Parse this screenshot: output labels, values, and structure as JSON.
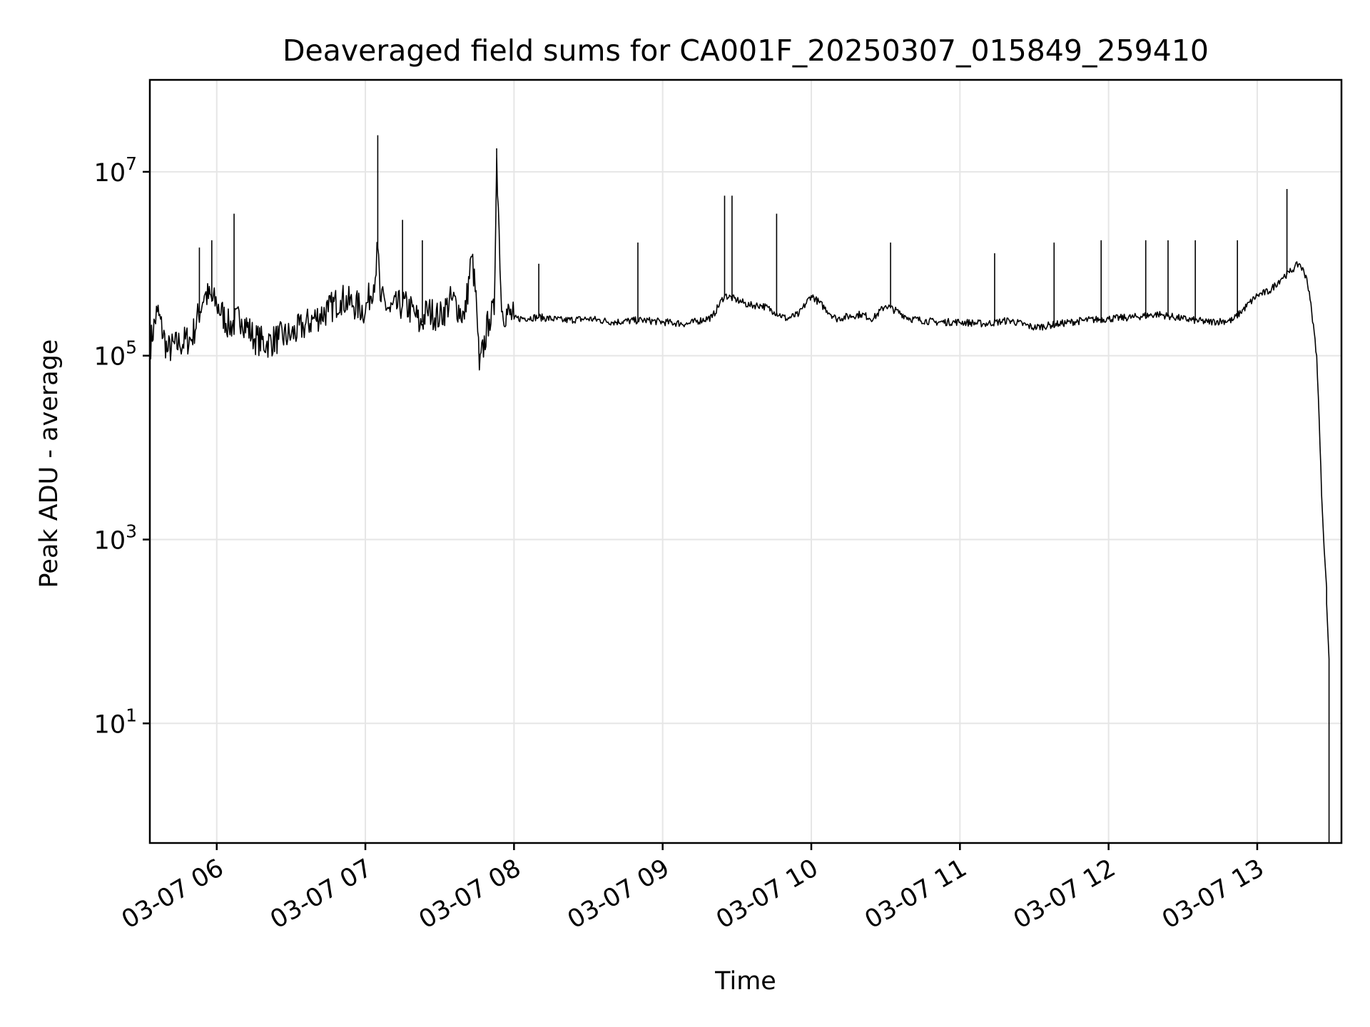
{
  "chart_data": {
    "type": "line",
    "title": "Deaveraged field sums for CA001F_20250307_015849_259410",
    "xlabel": "Time",
    "ylabel": "Peak ADU - average",
    "yscale": "log",
    "grid": true,
    "x_ticks": [
      "03-07 06",
      "03-07 07",
      "03-07 08",
      "03-07 09",
      "03-07 10",
      "03-07 11",
      "03-07 12",
      "03-07 13"
    ],
    "y_ticks": [
      {
        "value": 10,
        "base": "10",
        "exp": "1"
      },
      {
        "value": 1000,
        "base": "10",
        "exp": "3"
      },
      {
        "value": 100000,
        "base": "10",
        "exp": "5"
      },
      {
        "value": 10000000,
        "base": "10",
        "exp": "7"
      }
    ],
    "xlim": [
      "2025-03-07 05:33",
      "2025-03-07 13:34"
    ],
    "ylim": [
      0.5,
      100000000
    ],
    "line_color": "#000000",
    "series": [
      {
        "x": [
          "2025-03-07 05:33",
          "2025-03-07 05:36",
          "2025-03-07 05:40",
          "2025-03-07 05:45",
          "2025-03-07 05:50",
          "2025-03-07 05:55",
          "2025-03-07 06:00",
          "2025-03-07 06:05",
          "2025-03-07 06:10",
          "2025-03-07 06:15",
          "2025-03-07 06:20",
          "2025-03-07 06:25",
          "2025-03-07 06:30",
          "2025-03-07 06:35",
          "2025-03-07 06:40",
          "2025-03-07 06:45",
          "2025-03-07 06:50",
          "2025-03-07 06:55",
          "2025-03-07 07:00",
          "2025-03-07 07:04",
          "2025-03-07 07:05",
          "2025-03-07 07:06",
          "2025-03-07 07:10",
          "2025-03-07 07:15",
          "2025-03-07 07:20",
          "2025-03-07 07:22",
          "2025-03-07 07:25",
          "2025-03-07 07:30",
          "2025-03-07 07:35",
          "2025-03-07 07:40",
          "2025-03-07 07:43",
          "2025-03-07 07:45",
          "2025-03-07 07:46",
          "2025-03-07 07:50",
          "2025-03-07 07:52",
          "2025-03-07 07:53",
          "2025-03-07 07:55",
          "2025-03-07 08:00",
          "2025-03-07 08:10",
          "2025-03-07 08:20",
          "2025-03-07 08:30",
          "2025-03-07 08:40",
          "2025-03-07 08:50",
          "2025-03-07 08:53",
          "2025-03-07 09:00",
          "2025-03-07 09:10",
          "2025-03-07 09:20",
          "2025-03-07 09:25",
          "2025-03-07 09:30",
          "2025-03-07 09:35",
          "2025-03-07 09:40",
          "2025-03-07 09:45",
          "2025-03-07 09:50",
          "2025-03-07 09:55",
          "2025-03-07 10:00",
          "2025-03-07 10:10",
          "2025-03-07 10:20",
          "2025-03-07 10:25",
          "2025-03-07 10:30",
          "2025-03-07 10:40",
          "2025-03-07 10:50",
          "2025-03-07 11:00",
          "2025-03-07 11:10",
          "2025-03-07 11:20",
          "2025-03-07 11:30",
          "2025-03-07 11:40",
          "2025-03-07 11:50",
          "2025-03-07 12:00",
          "2025-03-07 12:10",
          "2025-03-07 12:20",
          "2025-03-07 12:30",
          "2025-03-07 12:40",
          "2025-03-07 12:50",
          "2025-03-07 13:00",
          "2025-03-07 13:05",
          "2025-03-07 13:10",
          "2025-03-07 13:13",
          "2025-03-07 13:15",
          "2025-03-07 13:17",
          "2025-03-07 13:20",
          "2025-03-07 13:22",
          "2025-03-07 13:24",
          "2025-03-07 13:25",
          "2025-03-07 13:26",
          "2025-03-07 13:27",
          "2025-03-07 13:28",
          "2025-03-07 13:28",
          "2025-03-07 13:29",
          "2025-03-07 13:29"
        ],
        "y": [
          120000,
          300000,
          110000,
          130000,
          150000,
          450000,
          350000,
          200000,
          250000,
          150000,
          130000,
          150000,
          160000,
          200000,
          250000,
          300000,
          400000,
          350000,
          300000,
          700000,
          1500000,
          400000,
          300000,
          350000,
          280000,
          200000,
          300000,
          250000,
          400000,
          250000,
          1200000,
          300000,
          70000,
          250000,
          280000,
          15000000,
          300000,
          250000,
          260000,
          240000,
          250000,
          230000,
          240000,
          240000,
          230000,
          220000,
          260000,
          450000,
          400000,
          350000,
          350000,
          300000,
          250000,
          280000,
          450000,
          250000,
          280000,
          250000,
          350000,
          250000,
          230000,
          230000,
          220000,
          240000,
          200000,
          220000,
          240000,
          250000,
          260000,
          280000,
          250000,
          230000,
          240000,
          450000,
          500000,
          700000,
          800000,
          900000,
          1000000,
          700000,
          300000,
          100000,
          20000,
          3000,
          800,
          300,
          200,
          50,
          0.5
        ]
      }
    ],
    "spikes": [
      {
        "x": "2025-03-07 05:53",
        "y": 1500000
      },
      {
        "x": "2025-03-07 05:58",
        "y": 1800000
      },
      {
        "x": "2025-03-07 06:07",
        "y": 3500000
      },
      {
        "x": "2025-03-07 07:05",
        "y": 25000000
      },
      {
        "x": "2025-03-07 07:15",
        "y": 3000000
      },
      {
        "x": "2025-03-07 07:23",
        "y": 1800000
      },
      {
        "x": "2025-03-07 07:53",
        "y": 18000000
      },
      {
        "x": "2025-03-07 08:10",
        "y": 1000000
      },
      {
        "x": "2025-03-07 08:50",
        "y": 1700000
      },
      {
        "x": "2025-03-07 09:25",
        "y": 5500000
      },
      {
        "x": "2025-03-07 09:28",
        "y": 5500000
      },
      {
        "x": "2025-03-07 09:46",
        "y": 3500000
      },
      {
        "x": "2025-03-07 10:32",
        "y": 1700000
      },
      {
        "x": "2025-03-07 11:14",
        "y": 1300000
      },
      {
        "x": "2025-03-07 11:38",
        "y": 1700000
      },
      {
        "x": "2025-03-07 11:57",
        "y": 1800000
      },
      {
        "x": "2025-03-07 12:15",
        "y": 1800000
      },
      {
        "x": "2025-03-07 12:24",
        "y": 1800000
      },
      {
        "x": "2025-03-07 12:35",
        "y": 1800000
      },
      {
        "x": "2025-03-07 12:52",
        "y": 1800000
      },
      {
        "x": "2025-03-07 13:12",
        "y": 6500000
      }
    ]
  }
}
